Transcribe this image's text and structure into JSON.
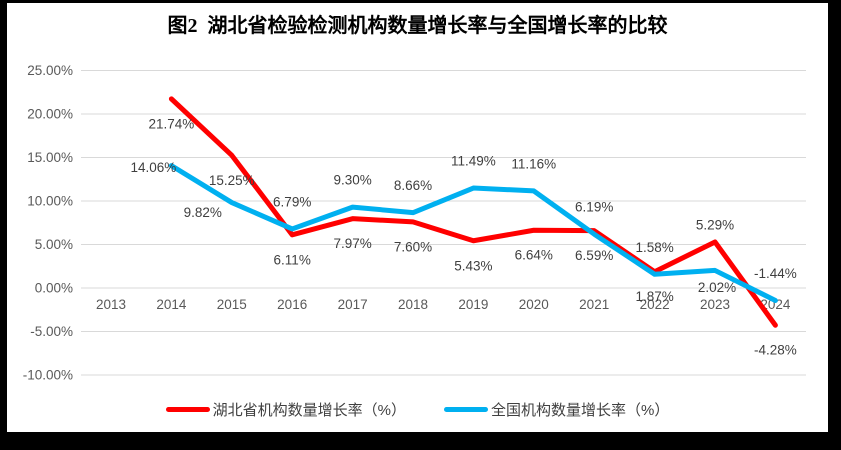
{
  "chart_data": {
    "type": "line",
    "title": "图2  湖北省检验检测机构数量增长率与全国增长率的比较",
    "categories": [
      "2013",
      "2014",
      "2015",
      "2016",
      "2017",
      "2018",
      "2019",
      "2020",
      "2021",
      "2022",
      "2023",
      "2024"
    ],
    "series": [
      {
        "name": "湖北省机构数量增长率（%）",
        "color": "#FF0000",
        "values": [
          null,
          21.74,
          15.25,
          6.11,
          7.97,
          7.6,
          5.43,
          6.64,
          6.59,
          1.87,
          5.29,
          -4.28
        ],
        "labels": [
          null,
          "21.74%",
          "15.25%",
          "6.11%",
          "7.97%",
          "7.60%",
          "5.43%",
          "6.64%",
          "6.59%",
          "1.87%",
          "5.29%",
          "-4.28%"
        ]
      },
      {
        "name": "全国机构数量增长率（%）",
        "color": "#00B0F0",
        "values": [
          null,
          14.06,
          9.82,
          6.79,
          9.3,
          8.66,
          11.49,
          11.16,
          6.19,
          1.58,
          2.02,
          -1.44
        ],
        "labels": [
          null,
          "14.06%",
          "9.82%",
          "6.79%",
          "9.30%",
          "8.66%",
          "11.49%",
          "11.16%",
          "6.19%",
          "1.58%",
          "2.02%",
          "-1.44%"
        ]
      }
    ],
    "xlabel": "",
    "ylabel": "",
    "ylim": [
      -10,
      25
    ],
    "ytick_step": 5,
    "yticks": [
      "25.00%",
      "20.00%",
      "15.00%",
      "10.00%",
      "5.00%",
      "0.00%",
      "-5.00%",
      "-10.00%"
    ],
    "grid": true,
    "legend_position": "bottom",
    "gridline_color": "#d9d9d9",
    "background_color": "#ffffff",
    "border_color": "#000000"
  }
}
